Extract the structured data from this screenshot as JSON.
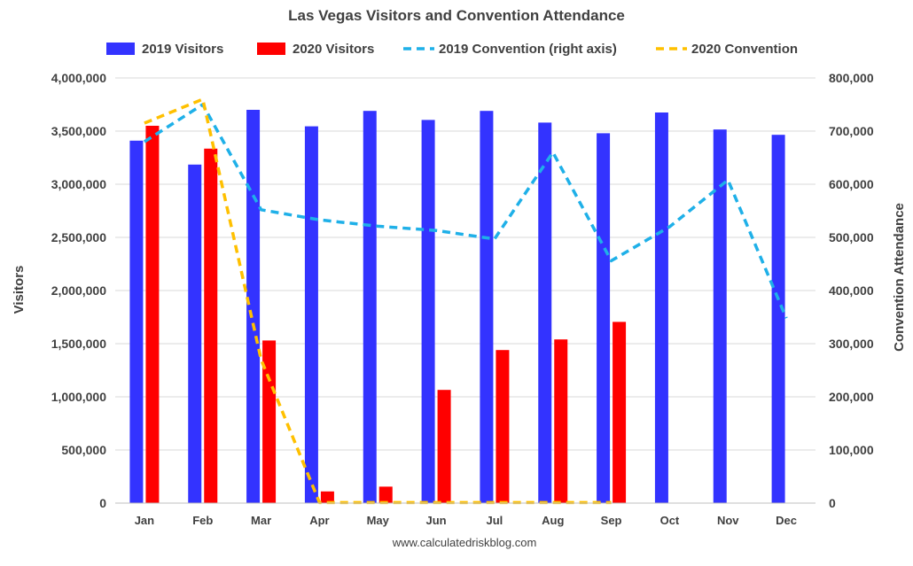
{
  "chart_data": {
    "type": "bar",
    "title": "Las Vegas Visitors and Convention Attendance",
    "ylabel": "Visitors",
    "y2label": "Convention Attendance",
    "source": "www.calculatedriskblog.com",
    "categories": [
      "Jan",
      "Feb",
      "Mar",
      "Apr",
      "May",
      "Jun",
      "Jul",
      "Aug",
      "Sep",
      "Oct",
      "Nov",
      "Dec"
    ],
    "ylim": [
      0,
      4000000
    ],
    "y2lim": [
      0,
      800000
    ],
    "yticks": [
      "0",
      "500,000",
      "1,000,000",
      "1,500,000",
      "2,000,000",
      "2,500,000",
      "3,000,000",
      "3,500,000",
      "4,000,000"
    ],
    "y2ticks": [
      "0",
      "100,000",
      "200,000",
      "300,000",
      "400,000",
      "500,000",
      "600,000",
      "700,000",
      "800,000"
    ],
    "grid": true,
    "legend_position": "top",
    "bar_series": [
      {
        "name": "2019 Visitors",
        "color": "#3333FF",
        "values": [
          3410000,
          3185000,
          3700000,
          3545000,
          3690000,
          3605000,
          3690000,
          3580000,
          3480000,
          3675000,
          3515000,
          3465000
        ]
      },
      {
        "name": "2020 Visitors",
        "color": "#FF0000",
        "values": [
          3550000,
          3335000,
          1530000,
          110000,
          155000,
          1065000,
          1440000,
          1540000,
          1705000,
          null,
          null,
          null
        ]
      }
    ],
    "line_series": [
      {
        "name": "2019 Convention (right axis)",
        "color": "#1FB0E8",
        "axis": "right",
        "values": [
          680000,
          750000,
          552000,
          533000,
          521000,
          513000,
          497000,
          660000,
          456000,
          520000,
          608000,
          348000
        ]
      },
      {
        "name": "2020 Convention",
        "color": "#FFC000",
        "axis": "right",
        "values": [
          715000,
          760000,
          270000,
          1000,
          1000,
          1000,
          1000,
          1000,
          1000,
          null,
          null,
          null
        ]
      }
    ]
  }
}
